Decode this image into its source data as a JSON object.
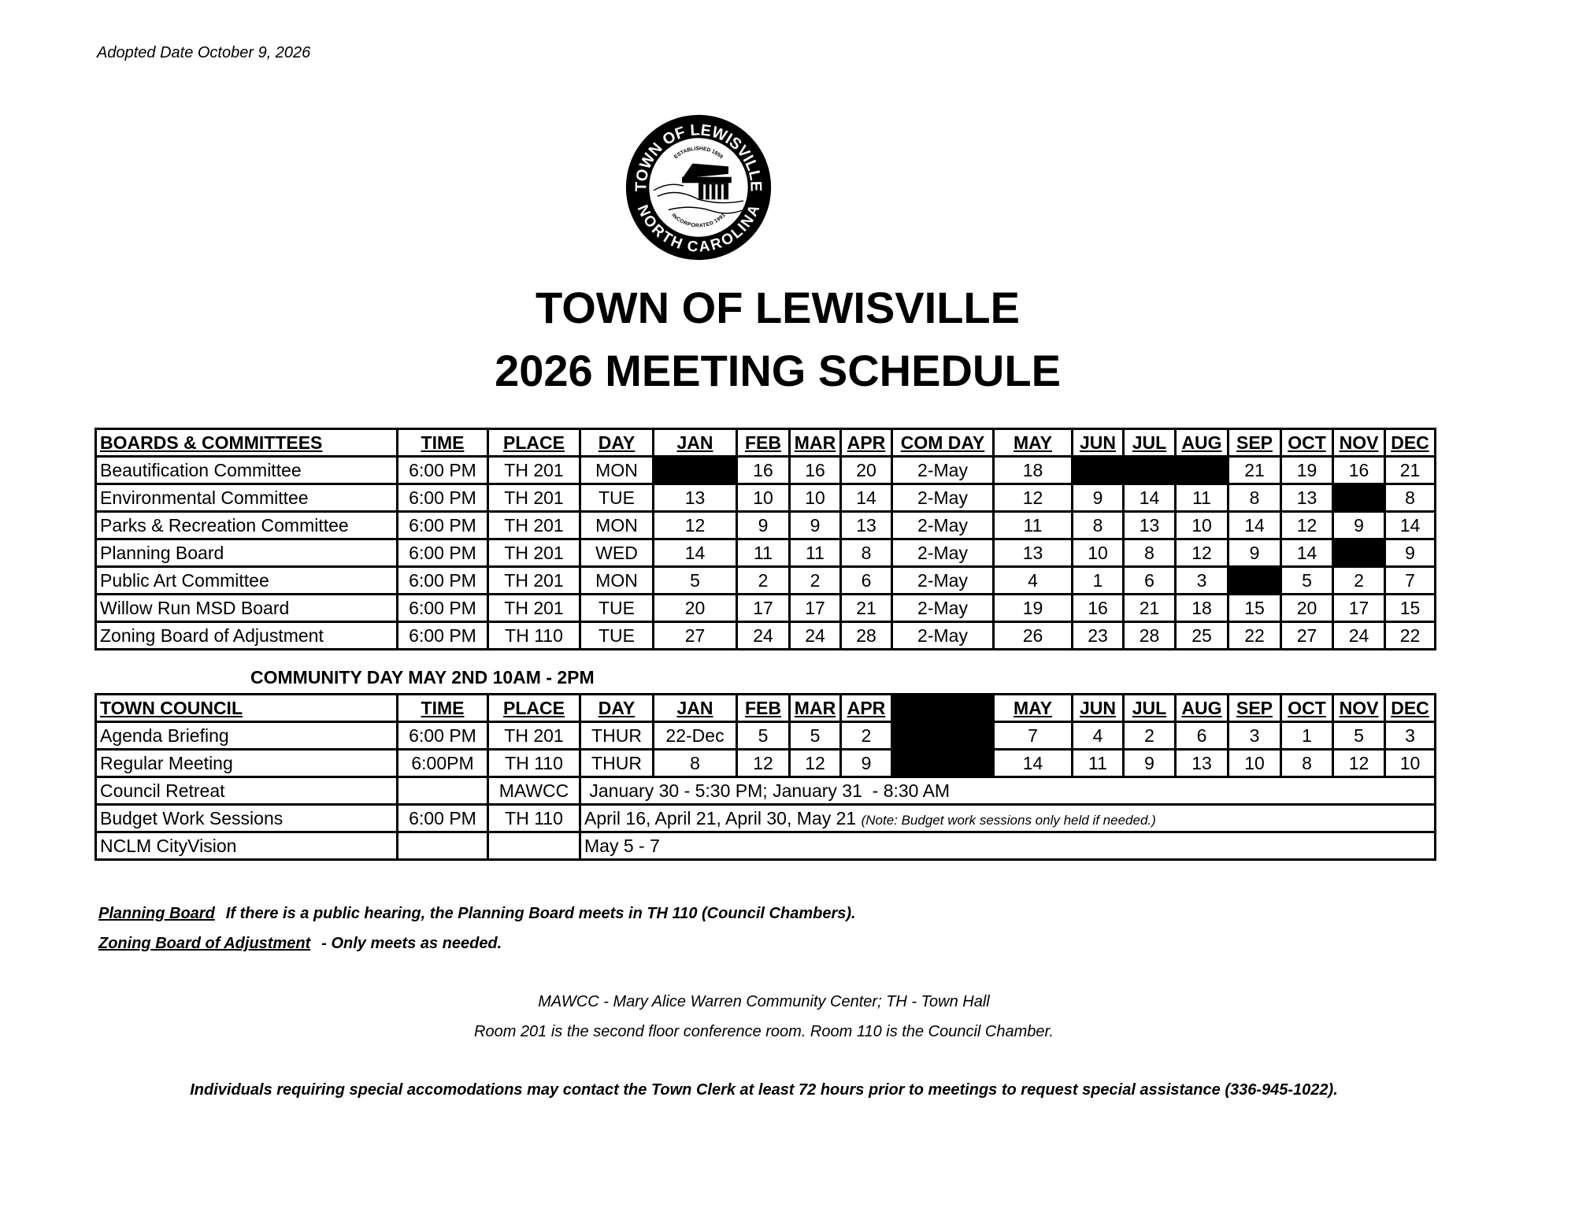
{
  "adopted": "Adopted Date October 9, 2026",
  "logo": {
    "top_text": "TOWN OF LEWISVILLE",
    "established": "ESTABLISHED 1859",
    "incorporated": "INCORPORATED 1991",
    "bottom_text": "NORTH CAROLINA"
  },
  "title": {
    "line1": "TOWN OF LEWISVILLE",
    "line2": "2026 MEETING SCHEDULE"
  },
  "boards": {
    "headers": [
      "BOARDS & COMMITTEES",
      "TIME",
      "PLACE",
      "DAY",
      "JAN",
      "FEB",
      "MAR",
      "APR",
      "COM DAY",
      "MAY",
      "JUN",
      "JUL",
      "AUG",
      "SEP",
      "OCT",
      "NOV",
      "DEC"
    ],
    "rows": [
      [
        "Beautification Committee",
        "6:00 PM",
        "TH 201",
        "MON",
        null,
        "16",
        "16",
        "20",
        "2-May",
        "18",
        null,
        null,
        null,
        "21",
        "19",
        "16",
        "21"
      ],
      [
        "Environmental Committee",
        "6:00 PM",
        "TH 201",
        "TUE",
        "13",
        "10",
        "10",
        "14",
        "2-May",
        "12",
        "9",
        "14",
        "11",
        "8",
        "13",
        null,
        "8"
      ],
      [
        "Parks & Recreation Committee",
        "6:00 PM",
        "TH 201",
        "MON",
        "12",
        "9",
        "9",
        "13",
        "2-May",
        "11",
        "8",
        "13",
        "10",
        "14",
        "12",
        "9",
        "14"
      ],
      [
        "Planning Board",
        "6:00 PM",
        "TH 201",
        "WED",
        "14",
        "11",
        "11",
        "8",
        "2-May",
        "13",
        "10",
        "8",
        "12",
        "9",
        "14",
        null,
        "9"
      ],
      [
        "Public Art Committee",
        "6:00 PM",
        "TH 201",
        "MON",
        "5",
        "2",
        "2",
        "6",
        "2-May",
        "4",
        "1",
        "6",
        "3",
        null,
        "5",
        "2",
        "7"
      ],
      [
        "Willow Run MSD Board",
        "6:00 PM",
        "TH 201",
        "TUE",
        "20",
        "17",
        "17",
        "21",
        "2-May",
        "19",
        "16",
        "21",
        "18",
        "15",
        "20",
        "17",
        "15"
      ],
      [
        "Zoning  Board of Adjustment",
        "6:00 PM",
        "TH 110",
        "TUE",
        "27",
        "24",
        "24",
        "28",
        "2-May",
        "26",
        "23",
        "28",
        "25",
        "22",
        "27",
        "24",
        "22"
      ]
    ]
  },
  "community_day": "COMMUNITY DAY MAY 2ND 10AM - 2PM",
  "council": {
    "headers": [
      "TOWN COUNCIL",
      "TIME",
      "PLACE",
      "DAY",
      "JAN",
      "FEB",
      "MAR",
      "APR",
      null,
      "MAY",
      "JUN",
      "JUL",
      "AUG",
      "SEP",
      "OCT",
      "NOV",
      "DEC"
    ],
    "rows": [
      [
        "Agenda Briefing",
        "6:00 PM",
        "TH 201",
        "THUR",
        "22-Dec",
        "5",
        "5",
        "2",
        null,
        "7",
        "4",
        "2",
        "6",
        "3",
        "1",
        "5",
        "3"
      ],
      [
        "Regular Meeting",
        "6:00PM",
        "TH 110",
        "THUR",
        "8",
        "12",
        "12",
        "9",
        null,
        "14",
        "11",
        "9",
        "13",
        "10",
        "8",
        "12",
        "10"
      ]
    ],
    "span_rows": [
      {
        "name": "Council Retreat",
        "time": "",
        "place": "MAWCC",
        "text": " January 30 - 5:30 PM; January 31  - 8:30 AM",
        "note": ""
      },
      {
        "name": "Budget Work Sessions",
        "time": "6:00 PM",
        "place": "TH 110",
        "text": "April 16, April 21, April 30, May 21 ",
        "note": "(Note: Budget work sessions only held if needed.)"
      },
      {
        "name": "NCLM CityVision",
        "time": "",
        "place": "",
        "text": "May 5 - 7",
        "note": ""
      }
    ]
  },
  "footnotes": [
    {
      "label": "Planning Board",
      "text": "If there is a public hearing, the Planning Board meets in TH 110 (Council Chambers)."
    },
    {
      "label": "Zoning Board of Adjustment",
      "text": "- Only meets as needed."
    }
  ],
  "legend": [
    "MAWCC - Mary Alice Warren Community Center; TH - Town Hall",
    "Room 201 is the second floor conference room. Room 110 is the Council Chamber."
  ],
  "accommodations": "Individuals requiring special accomodations may contact the Town Clerk at least 72 hours prior to meetings to request special assistance (336-945-1022)."
}
